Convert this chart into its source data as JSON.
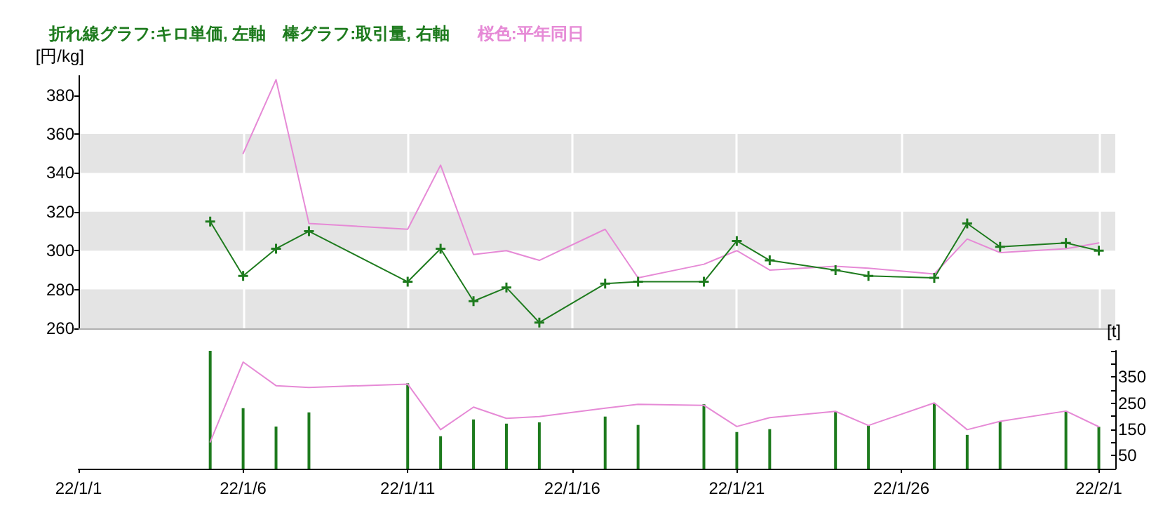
{
  "chart_data": [
    {
      "type": "line",
      "title": "折れ線グラフ:キロ単価, 左軸　棒グラフ:取引量, 右軸",
      "subtitle": "桜色:平年同日",
      "ylabel": "[円/kg]",
      "grid": true,
      "marker": "cross",
      "tick_labels": "y",
      "x": [
        "--01-05",
        "--01-06",
        "--01-07",
        "--01-08",
        "--01-11",
        "--01-12",
        "--01-13",
        "--01-14",
        "--01-15",
        "--01-17",
        "--01-18",
        "--01-20",
        "--01-21",
        "--01-22",
        "--01-24",
        "--01-25",
        "--01-27",
        "--01-28",
        "--01-29",
        "--01-31",
        "--02-01"
      ],
      "xlim": [
        "--01-01",
        "--02-01T12:00"
      ],
      "xticks": [
        {
          "value": "--01-01",
          "label": "22/1/1"
        },
        {
          "value": "--01-06",
          "label": "22/1/6"
        },
        {
          "value": "--01-11",
          "label": "22/1/11"
        },
        {
          "value": "--01-16",
          "label": "22/1/16"
        },
        {
          "value": "--01-21",
          "label": "22/1/21"
        },
        {
          "value": "--01-26",
          "label": "22/1/26"
        },
        {
          "value": "--02-01",
          "label": "22/2/1"
        }
      ],
      "ylim": [
        260,
        390
      ],
      "yticks": [
        260,
        280,
        300,
        320,
        340,
        360,
        380
      ],
      "series": [
        {
          "color": "#e68ad6",
          "marker": "none",
          "values": [
            null,
            350,
            388,
            314,
            311,
            344,
            298,
            300,
            295,
            311,
            286,
            293,
            300,
            290,
            292,
            291,
            288,
            306,
            299,
            301,
            304
          ]
        },
        {
          "color": "#1e7b1e",
          "values": [
            315,
            287,
            301,
            310,
            284,
            301,
            274,
            281,
            263,
            283,
            284,
            284,
            305,
            295,
            290,
            287,
            286,
            314,
            302,
            304,
            300
          ]
        }
      ]
    },
    {
      "type": "bar",
      "y2label": "[t]",
      "x": [
        "--01-05",
        "--01-06",
        "--01-07",
        "--01-08",
        "--01-11",
        "--01-12",
        "--01-13",
        "--01-14",
        "--01-15",
        "--01-17",
        "--01-18",
        "--01-20",
        "--01-21",
        "--01-22",
        "--01-24",
        "--01-25",
        "--01-27",
        "--01-28",
        "--01-29",
        "--01-31",
        "--02-01"
      ],
      "xlim": [
        "--01-01",
        "--02-01T12:00"
      ],
      "xticks": [
        {
          "value": "--01-01",
          "label": "22/1/1"
        },
        {
          "value": "--01-06",
          "label": "22/1/6"
        },
        {
          "value": "--01-11",
          "label": "22/1/11"
        },
        {
          "value": "--01-16",
          "label": "22/1/16"
        },
        {
          "value": "--01-21",
          "label": "22/1/21"
        },
        {
          "value": "--01-26",
          "label": "22/1/26"
        },
        {
          "value": "--02-01",
          "label": "22/2/1"
        }
      ],
      "y2lim": [
        0,
        450
      ],
      "y2ticks": [
        {
          "value": 0,
          "label": null
        },
        50,
        {
          "value": 100,
          "label": null
        },
        150,
        {
          "value": 200,
          "label": null
        },
        250,
        {
          "value": 300,
          "label": null
        },
        350,
        {
          "value": 400,
          "label": null
        },
        {
          "value": 450,
          "label": null
        }
      ],
      "series": [
        {
          "color": "#1e7b1e",
          "axis": "y2",
          "values": [
            450,
            231,
            161,
            215,
            326,
            124,
            188,
            172,
            177,
            199,
            167,
            246,
            140,
            151,
            219,
            165,
            251,
            129,
            181,
            220,
            160
          ]
        },
        {
          "type": "line",
          "color": "#e68ad6",
          "axis": "y2",
          "values": [
            102,
            407,
            317,
            310,
            323,
            149,
            235,
            192,
            199,
            231,
            246,
            242,
            161,
            195,
            219,
            165,
            251,
            149,
            181,
            220,
            160
          ]
        }
      ]
    }
  ]
}
